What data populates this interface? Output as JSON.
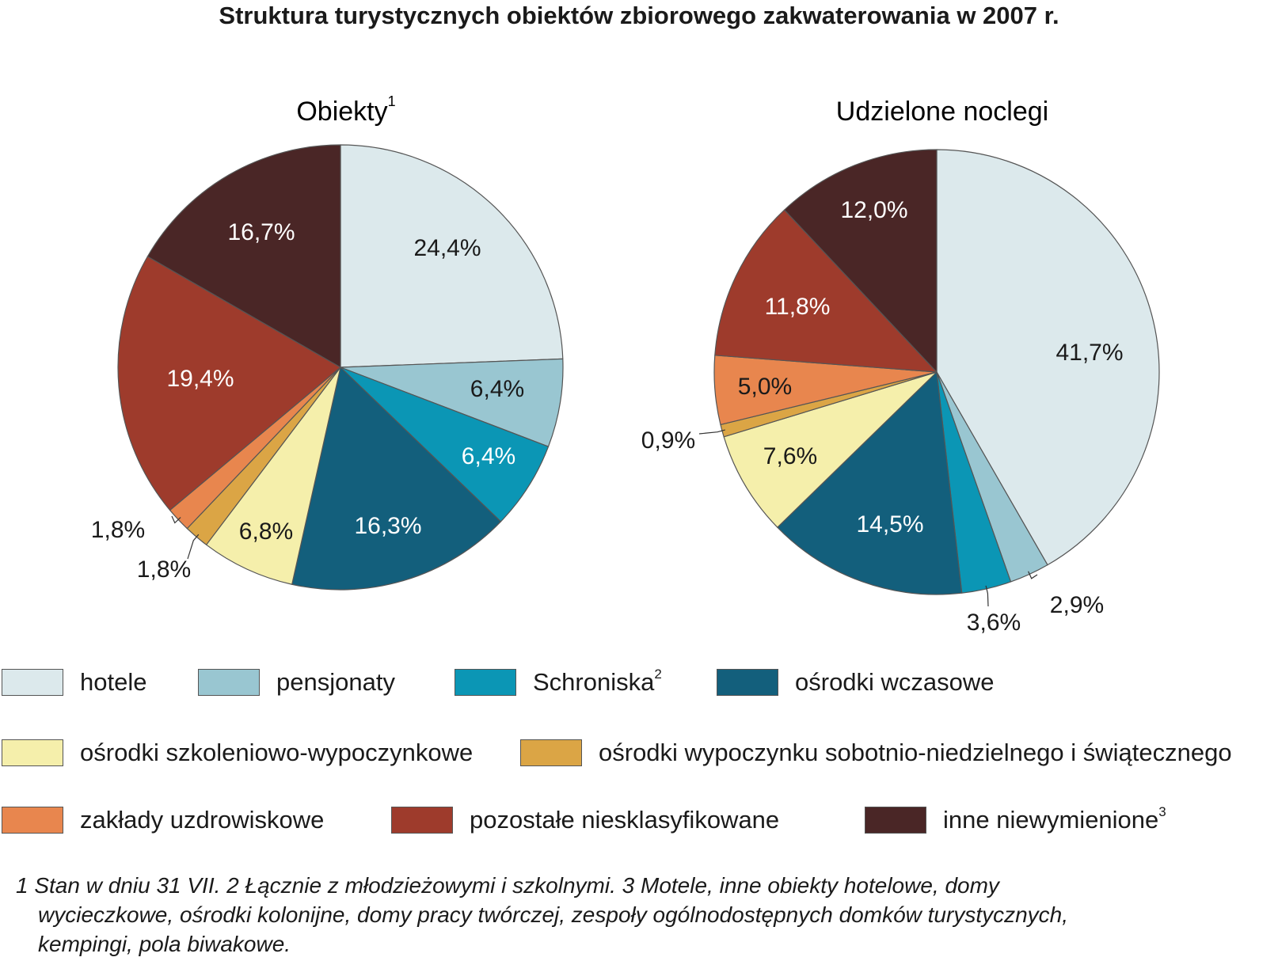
{
  "title": "Struktura turystycznych obiektów zbiorowego zakwaterowania w 2007 r.",
  "legend": [
    {
      "key": "hotele",
      "label": "hotele",
      "sup": "",
      "color": "#dce9ec"
    },
    {
      "key": "pensjonaty",
      "label": "pensjonaty",
      "sup": "",
      "color": "#99c6d1"
    },
    {
      "key": "schroniska",
      "label": "Schroniska",
      "sup": "2",
      "color": "#0b96b5"
    },
    {
      "key": "osrodki_wczasowe",
      "label": "ośrodki wczasowe",
      "sup": "",
      "color": "#135f7c"
    },
    {
      "key": "szkoleniowo",
      "label": "ośrodki szkoleniowo-wypoczynkowe",
      "sup": "",
      "color": "#f5efab"
    },
    {
      "key": "sobotnio",
      "label": "ośrodki wypoczynku sobotnio-niedzielnego i świątecznego",
      "sup": "",
      "color": "#dba545"
    },
    {
      "key": "uzdrowiskowe",
      "label": "zakłady uzdrowiskowe",
      "sup": "",
      "color": "#e8864e"
    },
    {
      "key": "pozostale",
      "label": "pozostałe niesklasyfikowane",
      "sup": "",
      "color": "#9e3b2c"
    },
    {
      "key": "inne",
      "label": "inne niewymienione",
      "sup": "3",
      "color": "#4a2626"
    }
  ],
  "chart_data": [
    {
      "type": "pie",
      "title": "Obiekty",
      "title_sup": "1",
      "categories": [
        "hotele",
        "pensjonaty",
        "Schroniska",
        "ośrodki wczasowe",
        "ośrodki szkoleniowo-wypoczynkowe",
        "ośrodki wypoczynku sobotnio-niedzielnego i świątecznego",
        "zakłady uzdrowiskowe",
        "pozostałe niesklasyfikowane",
        "inne niewymienione"
      ],
      "values": [
        24.4,
        6.4,
        6.4,
        16.3,
        6.8,
        1.8,
        1.8,
        19.4,
        16.7
      ],
      "labels": [
        "24,4%",
        "6,4%",
        "6,4%",
        "16,3%",
        "6,8%",
        "1,8%",
        "1,8%",
        "19,4%",
        "16,7%"
      ]
    },
    {
      "type": "pie",
      "title": "Udzielone noclegi",
      "title_sup": "",
      "categories": [
        "hotele",
        "pensjonaty",
        "Schroniska",
        "ośrodki wczasowe",
        "ośrodki szkoleniowo-wypoczynkowe",
        "ośrodki wypoczynku sobotnio-niedzielnego i świątecznego",
        "zakłady uzdrowiskowe",
        "pozostałe niesklasyfikowane",
        "inne niewymienione"
      ],
      "values": [
        41.7,
        2.9,
        3.6,
        14.5,
        7.6,
        0.9,
        5.0,
        11.8,
        12.0
      ],
      "labels": [
        "41,7%",
        "2,9%",
        "3,6%",
        "14,5%",
        "7,6%",
        "0,9%",
        "5,0%",
        "11,8%",
        "12,0%"
      ]
    }
  ],
  "footnote": {
    "line1": "1 Stan w dniu 31 VII. 2 Łącznie z młodzieżowymi i szkolnymi. 3 Motele, inne obiekty hotelowe, domy",
    "line2": "wycieczkowe, ośrodki kolonijne, domy pracy twórczej, zespoły ogólnodostępnych domków turystycznych,",
    "line3": "kempingi, pola biwakowe."
  }
}
